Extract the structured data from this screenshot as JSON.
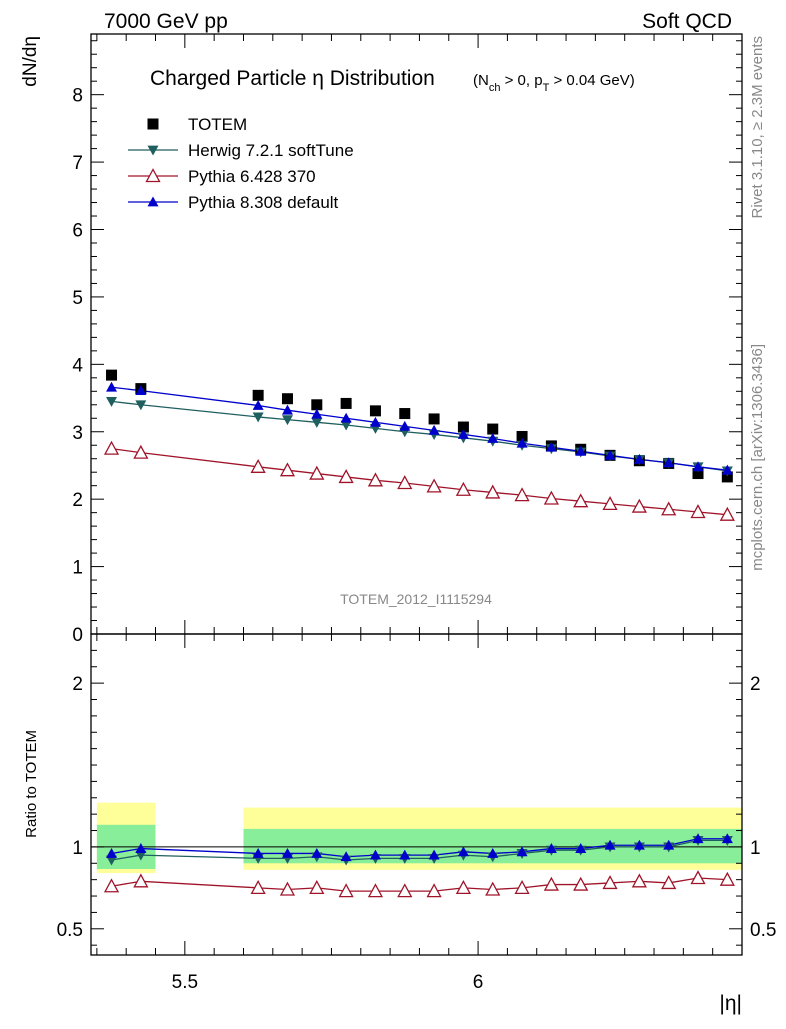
{
  "header": {
    "left": "7000 GeV pp",
    "right": "Soft QCD"
  },
  "side_labels": {
    "rivet": "Rivet 3.1.10, ≥ 2.3M events",
    "mcplots": "mcplots.cern.ch [arXiv:1306.3436]"
  },
  "analysis_id": "TOTEM_2012_I1115294",
  "chart_data": {
    "type": "scatter",
    "title": "Charged Particle η Distribution",
    "subtitle": "(N_ch > 0, p_T > 0.04 GeV)",
    "xlabel": "|η|",
    "ylabel": "dN/dη",
    "ratio_ylabel": "Ratio to TOTEM",
    "xlim": [
      5.34,
      6.45
    ],
    "ylim": [
      0,
      8.9
    ],
    "ratio_ylim": [
      0.34,
      2.3
    ],
    "x_ticks": [
      "5.5",
      "6"
    ],
    "x_tick_values": [
      5.5,
      6.0
    ],
    "y_ticks": [
      "0",
      "1",
      "2",
      "3",
      "4",
      "5",
      "6",
      "7",
      "8"
    ],
    "ratio_y_ticks": [
      "0.5",
      "1",
      "2"
    ],
    "ratio_y_tick_values": [
      0.5,
      1,
      2
    ],
    "legend_placement": "top-left",
    "x": [
      5.375,
      5.425,
      5.625,
      5.675,
      5.725,
      5.775,
      5.825,
      5.875,
      5.925,
      5.975,
      6.025,
      6.075,
      6.125,
      6.175,
      6.225,
      6.275,
      6.325,
      6.375,
      6.425
    ],
    "series": [
      {
        "name": "TOTEM",
        "color": "#000000",
        "marker": "square",
        "values": [
          3.84,
          3.64,
          3.54,
          3.49,
          3.4,
          3.42,
          3.31,
          3.27,
          3.19,
          3.07,
          3.04,
          2.93,
          2.79,
          2.74,
          2.65,
          2.57,
          2.53,
          2.38,
          2.33
        ]
      },
      {
        "name": "Herwig 7.2.1 softTune",
        "color": "#1f5f5f",
        "marker": "triangle-down",
        "values": [
          3.45,
          3.4,
          3.22,
          3.18,
          3.14,
          3.1,
          3.05,
          3.0,
          2.96,
          2.91,
          2.86,
          2.8,
          2.75,
          2.7,
          2.64,
          2.59,
          2.54,
          2.48,
          2.42
        ]
      },
      {
        "name": "Pythia 6.428 370",
        "color": "#a0142a",
        "marker": "triangle-open",
        "values": [
          2.75,
          2.69,
          2.48,
          2.43,
          2.38,
          2.33,
          2.28,
          2.24,
          2.19,
          2.14,
          2.1,
          2.06,
          2.01,
          1.97,
          1.93,
          1.89,
          1.85,
          1.81,
          1.77
        ]
      },
      {
        "name": "Pythia 8.308 default",
        "color": "#0000cc",
        "marker": "triangle-up",
        "values": [
          3.66,
          3.61,
          3.39,
          3.32,
          3.26,
          3.2,
          3.14,
          3.08,
          3.02,
          2.96,
          2.9,
          2.83,
          2.77,
          2.71,
          2.65,
          2.59,
          2.54,
          2.48,
          2.43
        ]
      }
    ],
    "ratio_series": [
      {
        "name": "Herwig 7.2.1 softTune",
        "values": [
          0.92,
          0.95,
          0.93,
          0.93,
          0.94,
          0.92,
          0.93,
          0.93,
          0.93,
          0.95,
          0.94,
          0.96,
          0.98,
          0.98,
          1.0,
          1.0,
          1.0,
          1.04,
          1.04
        ]
      },
      {
        "name": "Pythia 6.428 370",
        "values": [
          0.76,
          0.79,
          0.75,
          0.74,
          0.75,
          0.73,
          0.73,
          0.73,
          0.73,
          0.75,
          0.74,
          0.75,
          0.77,
          0.77,
          0.78,
          0.79,
          0.78,
          0.81,
          0.8
        ]
      },
      {
        "name": "Pythia 8.308 default",
        "values": [
          0.96,
          0.99,
          0.96,
          0.96,
          0.96,
          0.94,
          0.95,
          0.95,
          0.95,
          0.97,
          0.96,
          0.97,
          0.99,
          0.99,
          1.01,
          1.01,
          1.01,
          1.05,
          1.05
        ]
      }
    ],
    "ratio_bands": [
      {
        "x_from": 5.35,
        "x_to": 5.45,
        "stat_lo": 0.865,
        "stat_hi": 1.135,
        "sys_lo": 0.84,
        "sys_hi": 1.27
      },
      {
        "x_from": 5.6,
        "x_to": 6.45,
        "stat_lo": 0.9,
        "stat_hi": 1.11,
        "sys_lo": 0.86,
        "sys_hi": 1.24
      }
    ]
  }
}
